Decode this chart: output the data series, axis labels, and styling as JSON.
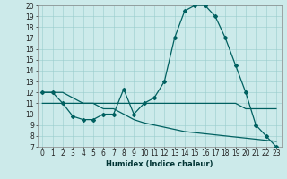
{
  "xlabel": "Humidex (Indice chaleur)",
  "bg_color": "#cceaea",
  "line_color": "#006060",
  "grid_color": "#99cccc",
  "ylim": [
    7,
    20
  ],
  "xlim": [
    -0.5,
    23.5
  ],
  "yticks": [
    7,
    8,
    9,
    10,
    11,
    12,
    13,
    14,
    15,
    16,
    17,
    18,
    19,
    20
  ],
  "xticks": [
    0,
    1,
    2,
    3,
    4,
    5,
    6,
    7,
    8,
    9,
    10,
    11,
    12,
    13,
    14,
    15,
    16,
    17,
    18,
    19,
    20,
    21,
    22,
    23
  ],
  "series": [
    {
      "x": [
        0,
        1,
        2,
        3,
        4,
        5,
        6,
        7,
        8,
        9,
        10,
        11,
        12,
        13,
        14,
        15,
        16,
        17,
        18,
        19,
        20,
        21,
        22,
        23
      ],
      "y": [
        12,
        12,
        11,
        9.8,
        9.5,
        9.5,
        10,
        10,
        12.3,
        10,
        11,
        11.5,
        13,
        17,
        19.5,
        20,
        20,
        19,
        17,
        14.5,
        12,
        9,
        8,
        7
      ],
      "marker": true
    },
    {
      "x": [
        0,
        1,
        2,
        3,
        4,
        5,
        6,
        7,
        8,
        9,
        10,
        11,
        12,
        13,
        14,
        15,
        16,
        17,
        18,
        19,
        20,
        21,
        22,
        23
      ],
      "y": [
        11,
        11,
        11,
        11,
        11,
        11,
        11,
        11,
        11,
        11,
        11,
        11,
        11,
        11,
        11,
        11,
        11,
        11,
        11,
        11,
        10.5,
        10.5,
        10.5,
        10.5
      ],
      "marker": false
    },
    {
      "x": [
        0,
        1,
        2,
        3,
        4,
        5,
        6,
        7,
        8,
        9,
        10,
        11,
        12,
        13,
        14,
        15,
        16,
        17,
        18,
        19,
        20,
        21,
        22,
        23
      ],
      "y": [
        12,
        12,
        12,
        11.5,
        11,
        11,
        10.5,
        10.5,
        10,
        9.5,
        9.2,
        9.0,
        8.8,
        8.6,
        8.4,
        8.3,
        8.2,
        8.1,
        8.0,
        7.9,
        7.8,
        7.7,
        7.6,
        7.5
      ],
      "marker": false
    }
  ],
  "tick_fontsize": 5.5,
  "xlabel_fontsize": 6.0
}
